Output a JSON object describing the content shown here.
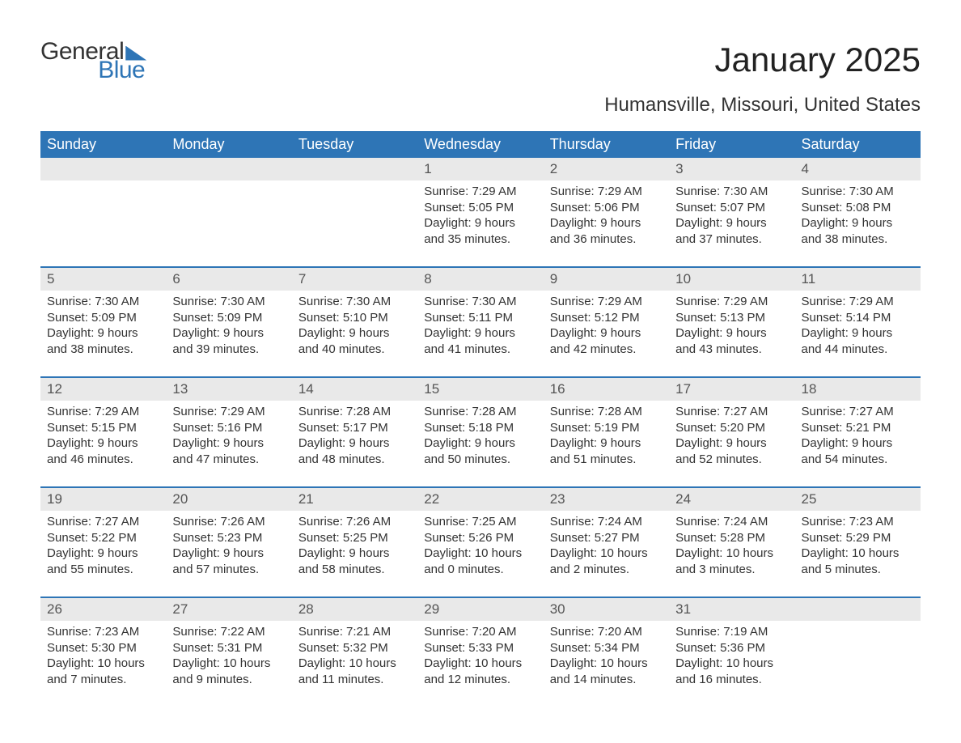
{
  "logo": {
    "part1": "General",
    "part2": "Blue"
  },
  "title": "January 2025",
  "location": "Humansville, Missouri, United States",
  "colors": {
    "accent": "#2e75b6",
    "header_bg": "#2e75b6",
    "header_text": "#ffffff",
    "daynum_bg": "#e9e9e9",
    "text": "#333333",
    "background": "#ffffff"
  },
  "typography": {
    "title_fontsize": 42,
    "location_fontsize": 24,
    "weekday_fontsize": 18,
    "body_fontsize": 15
  },
  "weekdays": [
    "Sunday",
    "Monday",
    "Tuesday",
    "Wednesday",
    "Thursday",
    "Friday",
    "Saturday"
  ],
  "weeks": [
    [
      {
        "day": null
      },
      {
        "day": null
      },
      {
        "day": null
      },
      {
        "day": 1,
        "sunrise": "Sunrise: 7:29 AM",
        "sunset": "Sunset: 5:05 PM",
        "daylight1": "Daylight: 9 hours",
        "daylight2": "and 35 minutes."
      },
      {
        "day": 2,
        "sunrise": "Sunrise: 7:29 AM",
        "sunset": "Sunset: 5:06 PM",
        "daylight1": "Daylight: 9 hours",
        "daylight2": "and 36 minutes."
      },
      {
        "day": 3,
        "sunrise": "Sunrise: 7:30 AM",
        "sunset": "Sunset: 5:07 PM",
        "daylight1": "Daylight: 9 hours",
        "daylight2": "and 37 minutes."
      },
      {
        "day": 4,
        "sunrise": "Sunrise: 7:30 AM",
        "sunset": "Sunset: 5:08 PM",
        "daylight1": "Daylight: 9 hours",
        "daylight2": "and 38 minutes."
      }
    ],
    [
      {
        "day": 5,
        "sunrise": "Sunrise: 7:30 AM",
        "sunset": "Sunset: 5:09 PM",
        "daylight1": "Daylight: 9 hours",
        "daylight2": "and 38 minutes."
      },
      {
        "day": 6,
        "sunrise": "Sunrise: 7:30 AM",
        "sunset": "Sunset: 5:09 PM",
        "daylight1": "Daylight: 9 hours",
        "daylight2": "and 39 minutes."
      },
      {
        "day": 7,
        "sunrise": "Sunrise: 7:30 AM",
        "sunset": "Sunset: 5:10 PM",
        "daylight1": "Daylight: 9 hours",
        "daylight2": "and 40 minutes."
      },
      {
        "day": 8,
        "sunrise": "Sunrise: 7:30 AM",
        "sunset": "Sunset: 5:11 PM",
        "daylight1": "Daylight: 9 hours",
        "daylight2": "and 41 minutes."
      },
      {
        "day": 9,
        "sunrise": "Sunrise: 7:29 AM",
        "sunset": "Sunset: 5:12 PM",
        "daylight1": "Daylight: 9 hours",
        "daylight2": "and 42 minutes."
      },
      {
        "day": 10,
        "sunrise": "Sunrise: 7:29 AM",
        "sunset": "Sunset: 5:13 PM",
        "daylight1": "Daylight: 9 hours",
        "daylight2": "and 43 minutes."
      },
      {
        "day": 11,
        "sunrise": "Sunrise: 7:29 AM",
        "sunset": "Sunset: 5:14 PM",
        "daylight1": "Daylight: 9 hours",
        "daylight2": "and 44 minutes."
      }
    ],
    [
      {
        "day": 12,
        "sunrise": "Sunrise: 7:29 AM",
        "sunset": "Sunset: 5:15 PM",
        "daylight1": "Daylight: 9 hours",
        "daylight2": "and 46 minutes."
      },
      {
        "day": 13,
        "sunrise": "Sunrise: 7:29 AM",
        "sunset": "Sunset: 5:16 PM",
        "daylight1": "Daylight: 9 hours",
        "daylight2": "and 47 minutes."
      },
      {
        "day": 14,
        "sunrise": "Sunrise: 7:28 AM",
        "sunset": "Sunset: 5:17 PM",
        "daylight1": "Daylight: 9 hours",
        "daylight2": "and 48 minutes."
      },
      {
        "day": 15,
        "sunrise": "Sunrise: 7:28 AM",
        "sunset": "Sunset: 5:18 PM",
        "daylight1": "Daylight: 9 hours",
        "daylight2": "and 50 minutes."
      },
      {
        "day": 16,
        "sunrise": "Sunrise: 7:28 AM",
        "sunset": "Sunset: 5:19 PM",
        "daylight1": "Daylight: 9 hours",
        "daylight2": "and 51 minutes."
      },
      {
        "day": 17,
        "sunrise": "Sunrise: 7:27 AM",
        "sunset": "Sunset: 5:20 PM",
        "daylight1": "Daylight: 9 hours",
        "daylight2": "and 52 minutes."
      },
      {
        "day": 18,
        "sunrise": "Sunrise: 7:27 AM",
        "sunset": "Sunset: 5:21 PM",
        "daylight1": "Daylight: 9 hours",
        "daylight2": "and 54 minutes."
      }
    ],
    [
      {
        "day": 19,
        "sunrise": "Sunrise: 7:27 AM",
        "sunset": "Sunset: 5:22 PM",
        "daylight1": "Daylight: 9 hours",
        "daylight2": "and 55 minutes."
      },
      {
        "day": 20,
        "sunrise": "Sunrise: 7:26 AM",
        "sunset": "Sunset: 5:23 PM",
        "daylight1": "Daylight: 9 hours",
        "daylight2": "and 57 minutes."
      },
      {
        "day": 21,
        "sunrise": "Sunrise: 7:26 AM",
        "sunset": "Sunset: 5:25 PM",
        "daylight1": "Daylight: 9 hours",
        "daylight2": "and 58 minutes."
      },
      {
        "day": 22,
        "sunrise": "Sunrise: 7:25 AM",
        "sunset": "Sunset: 5:26 PM",
        "daylight1": "Daylight: 10 hours",
        "daylight2": "and 0 minutes."
      },
      {
        "day": 23,
        "sunrise": "Sunrise: 7:24 AM",
        "sunset": "Sunset: 5:27 PM",
        "daylight1": "Daylight: 10 hours",
        "daylight2": "and 2 minutes."
      },
      {
        "day": 24,
        "sunrise": "Sunrise: 7:24 AM",
        "sunset": "Sunset: 5:28 PM",
        "daylight1": "Daylight: 10 hours",
        "daylight2": "and 3 minutes."
      },
      {
        "day": 25,
        "sunrise": "Sunrise: 7:23 AM",
        "sunset": "Sunset: 5:29 PM",
        "daylight1": "Daylight: 10 hours",
        "daylight2": "and 5 minutes."
      }
    ],
    [
      {
        "day": 26,
        "sunrise": "Sunrise: 7:23 AM",
        "sunset": "Sunset: 5:30 PM",
        "daylight1": "Daylight: 10 hours",
        "daylight2": "and 7 minutes."
      },
      {
        "day": 27,
        "sunrise": "Sunrise: 7:22 AM",
        "sunset": "Sunset: 5:31 PM",
        "daylight1": "Daylight: 10 hours",
        "daylight2": "and 9 minutes."
      },
      {
        "day": 28,
        "sunrise": "Sunrise: 7:21 AM",
        "sunset": "Sunset: 5:32 PM",
        "daylight1": "Daylight: 10 hours",
        "daylight2": "and 11 minutes."
      },
      {
        "day": 29,
        "sunrise": "Sunrise: 7:20 AM",
        "sunset": "Sunset: 5:33 PM",
        "daylight1": "Daylight: 10 hours",
        "daylight2": "and 12 minutes."
      },
      {
        "day": 30,
        "sunrise": "Sunrise: 7:20 AM",
        "sunset": "Sunset: 5:34 PM",
        "daylight1": "Daylight: 10 hours",
        "daylight2": "and 14 minutes."
      },
      {
        "day": 31,
        "sunrise": "Sunrise: 7:19 AM",
        "sunset": "Sunset: 5:36 PM",
        "daylight1": "Daylight: 10 hours",
        "daylight2": "and 16 minutes."
      },
      {
        "day": null
      }
    ]
  ]
}
